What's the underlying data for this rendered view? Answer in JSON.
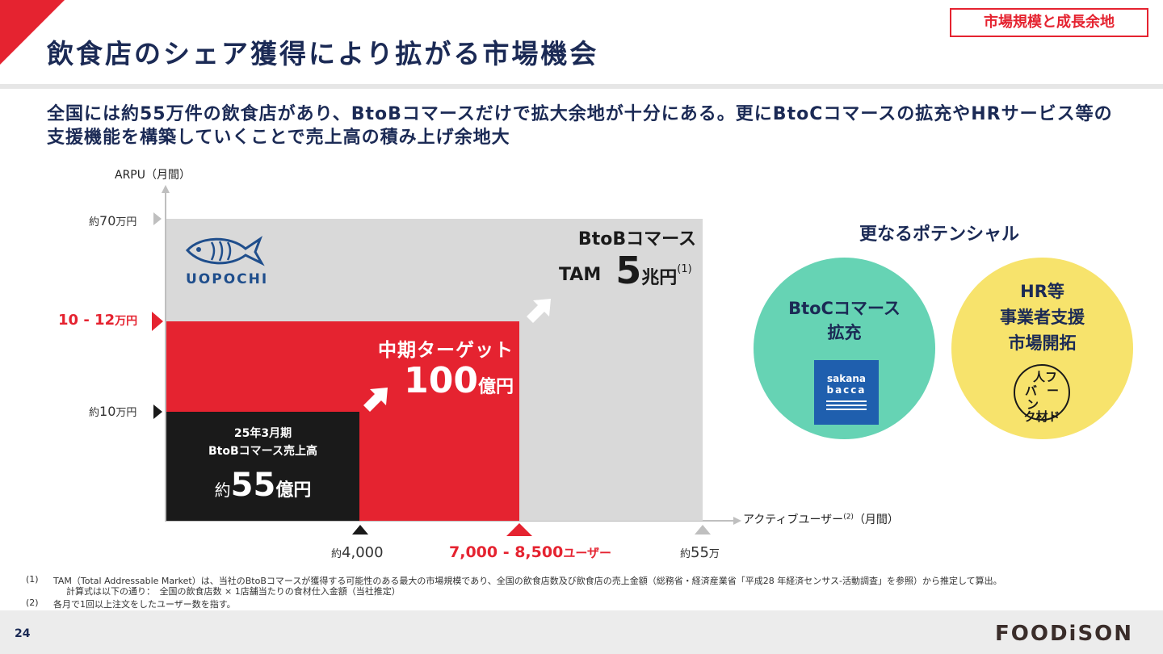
{
  "header": {
    "title": "飲食店のシェア獲得により拡がる市場機会",
    "badge": "市場規模と成長余地"
  },
  "subtitle": "全国には約55万件の飲食店があり、BtoBコマースだけで拡大余地が十分にある。更にBtoCコマースの拡充やHRサービス等の支援機能を構築していくことで売上高の積み上げ余地大",
  "diagram": {
    "y_axis_label": "ARPU（月間）",
    "x_axis_label": "アクティブユーザー",
    "x_axis_sup": "(2)",
    "x_axis_suffix": "（月間）",
    "y_ticks": {
      "top_prefix": "約",
      "top_value": "70",
      "top_unit": "万円",
      "mid_range": "10 - 12",
      "mid_unit": "万円",
      "low_prefix": "約",
      "low_value": "10",
      "low_unit": "万円"
    },
    "x_ticks": {
      "first_prefix": "約",
      "first_value": "4,000",
      "mid_range": "7,000 - 8,500",
      "mid_unit": "ユーザー",
      "last_prefix": "約",
      "last_value": "55",
      "last_unit": "万"
    },
    "logo_text": "UOPOCHI",
    "tam": {
      "heading": "BtoBコマース",
      "label": "TAM",
      "value": "5",
      "unit": "兆円",
      "note": "(1)"
    },
    "target": {
      "heading": "中期ターゲット",
      "value": "100",
      "unit": "億円"
    },
    "current": {
      "line1": "25年3月期",
      "line2": "BtoBコマース売上高",
      "prefix": "約",
      "value": "55",
      "unit": "億円"
    }
  },
  "potential": {
    "title": "更なるポテンシャル",
    "btoc_line1": "BtoCコマース",
    "btoc_line2": "拡充",
    "btoc_logo_line1": "sakana",
    "btoc_logo_line2": "bacca",
    "hr_line1": "HR等",
    "hr_line2": "事業者支援",
    "hr_line3": "市場開拓",
    "hr_logo_line1": "人フ",
    "hr_logo_line2": "バ",
    "hr_logo_line3": "ン",
    "hr_logo_line4": "ー",
    "hr_logo_line5": "ク材ド"
  },
  "notes": {
    "n1_mark": "(1)",
    "n1_text": "TAM（Total Addressable Market）は、当社のBtoBコマースが獲得する可能性のある最大の市場規模であり、全国の飲食店数及び飲食店の売上金額（総務省・経済産業省「平成28 年経済センサス-活動調査」を参照）から推定して算出。",
    "n1_calc": "計算式は以下の通り：　全国の飲食店数 × 1店舗当たりの食材仕入金額（当社推定）",
    "n2_mark": "(2)",
    "n2_text": "各月で1回以上注文をしたユーザー数を指す。"
  },
  "footer": {
    "page": "24",
    "logo": "FOODiSON"
  },
  "colors": {
    "red": "#e52330",
    "navy": "#1b2a55",
    "gray": "#d9d9d9",
    "green": "#66d3b4",
    "yellow": "#f7e36c",
    "black": "#1a1a1a"
  }
}
